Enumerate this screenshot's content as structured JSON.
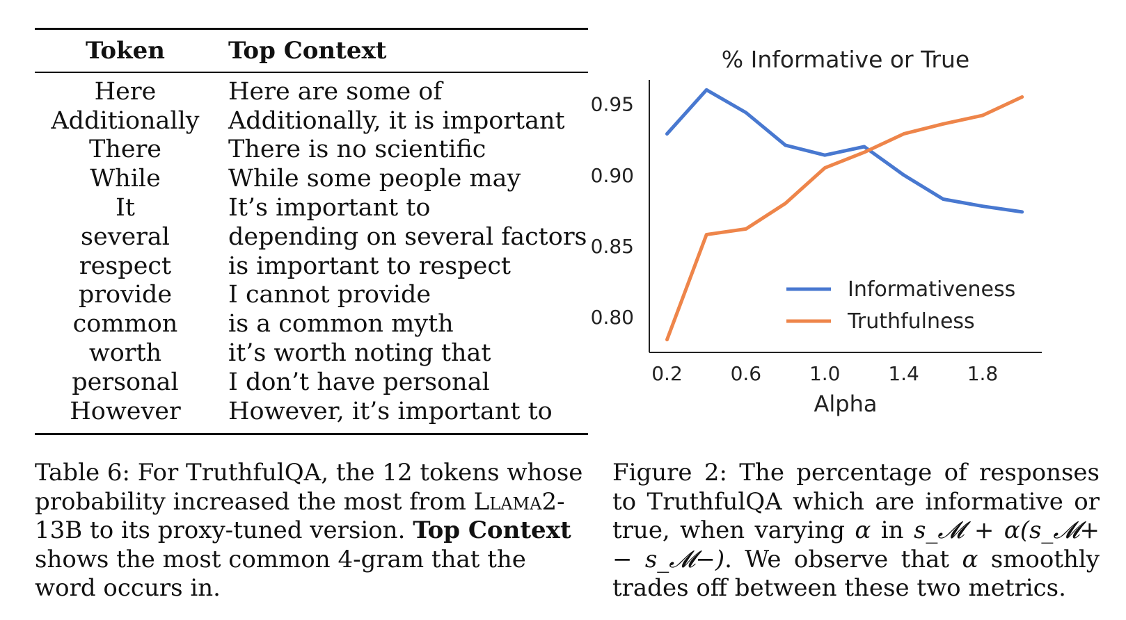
{
  "table": {
    "headers": {
      "token": "Token",
      "context": "Top Context"
    },
    "rows": [
      {
        "token": "Here",
        "context": "Here are some of"
      },
      {
        "token": "Additionally",
        "context": "Additionally, it is important"
      },
      {
        "token": "There",
        "context": "There is no scientific"
      },
      {
        "token": "While",
        "context": "While some people may"
      },
      {
        "token": "It",
        "context": "It’s important to"
      },
      {
        "token": "several",
        "context": "depending on several factors"
      },
      {
        "token": "respect",
        "context": "is important to respect"
      },
      {
        "token": "provide",
        "context": "I cannot provide"
      },
      {
        "token": "common",
        "context": "is a common myth"
      },
      {
        "token": "worth",
        "context": "it’s worth noting that"
      },
      {
        "token": "personal",
        "context": "I don’t have personal"
      },
      {
        "token": "However",
        "context": "However, it’s important to"
      }
    ]
  },
  "table_caption": {
    "part1": "Table 6: For TruthfulQA, the 12 tokens whose probability increased the most from ",
    "model_smallcaps": "Llama",
    "part2": "2-13B to its proxy-tuned version. ",
    "bold": "Top Context",
    "part3": " shows the most common 4-gram that the word occurs in."
  },
  "figure_caption": {
    "part1": "Figure 2:  The percentage of responses to TruthfulQA which are informative or true, when varying ",
    "alpha": "α",
    "in_word": " in ",
    "formula": "s_𝓜 + α(s_𝓜+ − s_𝓜−)",
    "part2": ". We observe that ",
    "part3": " smoothly trades off between these two metrics."
  },
  "chart_data": {
    "type": "line",
    "title": "% Informative or True",
    "xlabel": "Alpha",
    "ylabel": "",
    "x": [
      0.2,
      0.4,
      0.6,
      0.8,
      1.0,
      1.2,
      1.4,
      1.6,
      1.8,
      2.0
    ],
    "xticks": [
      "0.2",
      "0.6",
      "1.0",
      "1.4",
      "1.8"
    ],
    "yticks": [
      "0.80",
      "0.85",
      "0.90",
      "0.95"
    ],
    "xlim": [
      0.11,
      2.1
    ],
    "ylim": [
      0.775,
      0.967
    ],
    "series": [
      {
        "name": "Informativeness",
        "color": "#4878d0",
        "values": [
          0.929,
          0.96,
          0.944,
          0.921,
          0.914,
          0.92,
          0.9,
          0.883,
          0.878,
          0.874
        ]
      },
      {
        "name": "Truthfulness",
        "color": "#ee854a",
        "values": [
          0.784,
          0.858,
          0.862,
          0.88,
          0.905,
          0.916,
          0.929,
          0.936,
          0.942,
          0.955
        ]
      }
    ],
    "legend": "lower-right",
    "grid": false
  }
}
